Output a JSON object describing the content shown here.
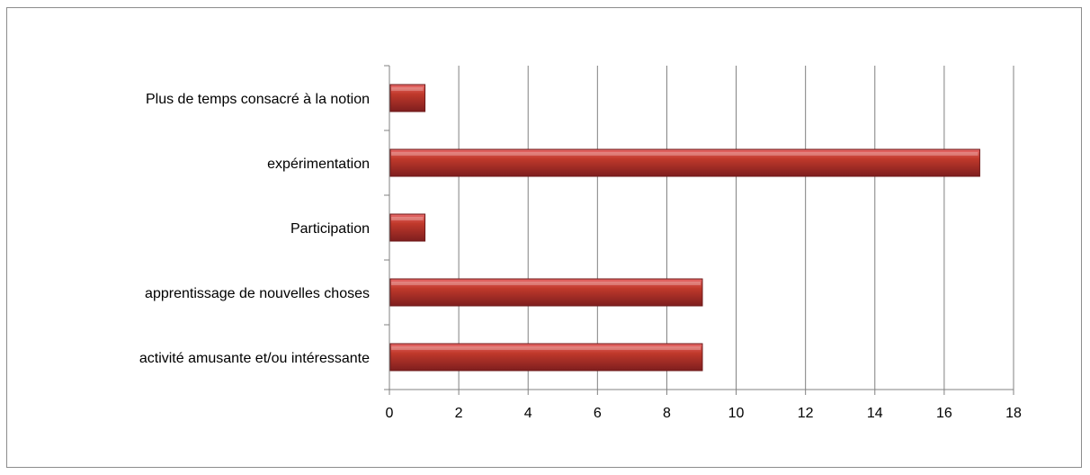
{
  "chart_data": {
    "type": "bar",
    "orientation": "horizontal",
    "categories": [
      "Plus de temps consacré à la notion",
      "expérimentation",
      "Participation",
      "apprentissage de nouvelles choses",
      "activité amusante et/ou intéressante"
    ],
    "values": [
      1,
      17,
      1,
      9,
      9
    ],
    "title": "",
    "xlabel": "",
    "ylabel": "",
    "xlim": [
      0,
      18
    ],
    "xticks": [
      0,
      2,
      4,
      6,
      8,
      10,
      12,
      14,
      16,
      18
    ],
    "grid": "vertical",
    "legend": "none",
    "colors": {
      "bar_light": "#e86a6a",
      "bar_main": "#c0392b",
      "bar_dark": "#7e1e1e",
      "bar_edge": "#6e1a1a",
      "gridline": "#808080",
      "axis": "#808080"
    }
  }
}
